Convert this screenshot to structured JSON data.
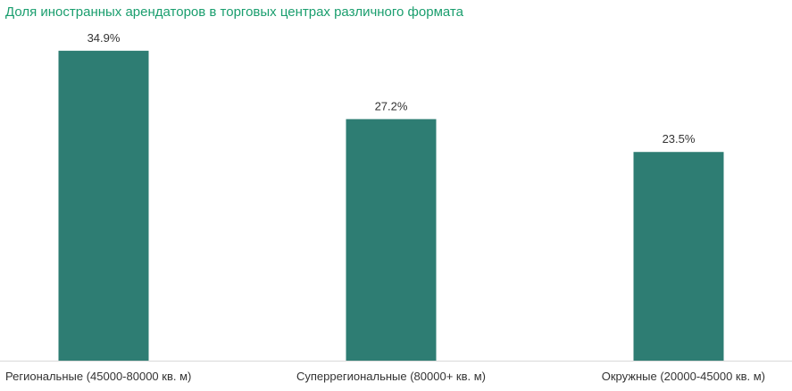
{
  "chart_data": {
    "type": "bar",
    "title": "Доля иностранных арендаторов в торговых центрах различного формата",
    "categories": [
      "Региональные (45000-80000 кв. м)",
      "Суперрегиональные (80000+ кв. м)",
      "Окружные (20000-45000 кв. м)"
    ],
    "values": [
      34.9,
      27.2,
      23.5
    ],
    "value_labels": [
      "34.9%",
      "27.2%",
      "23.5%"
    ],
    "xlabel": "",
    "ylabel": "",
    "ylim": [
      0,
      38
    ],
    "grid": false,
    "legend": "none",
    "bar_color": "#2e7d73",
    "title_color": "#1a9e6e",
    "axis_color": "#d9d9d9"
  }
}
